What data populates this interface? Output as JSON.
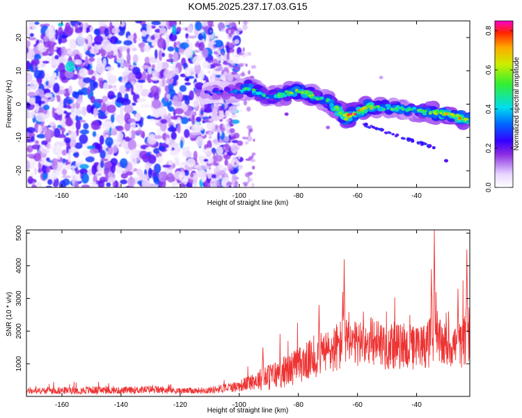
{
  "figure_title": "KOM5.2025.237.17.03.G15",
  "chart_data": [
    {
      "type": "heatmap",
      "title": "KOM5.2025.237.17.03.G15",
      "xlabel": "Height of straight line (km)",
      "ylabel": "Frequency (Hz)",
      "xlim": [
        -172,
        -22
      ],
      "ylim": [
        -25,
        25
      ],
      "xticks": [
        -160,
        -140,
        -120,
        -100,
        -80,
        -60,
        -40
      ],
      "yticks": [
        -20,
        -10,
        0,
        10,
        20
      ],
      "xtick_labels": [
        "-160",
        "-140",
        "-120",
        "-100",
        "-80",
        "-60",
        "-40"
      ],
      "ytick_labels": [
        "-20",
        "-10",
        "0",
        "10",
        "20"
      ],
      "colorbar": {
        "label": "Normalized spectral amplitude",
        "range": [
          0.0,
          0.85
        ],
        "ticks": [
          0.0,
          0.2,
          0.4,
          0.6,
          0.8
        ],
        "tick_labels": [
          "0.0",
          "0.2",
          "0.4",
          "0.6",
          "0.8"
        ]
      },
      "ridge": {
        "description_points": [
          {
            "x": -112,
            "freq": 3,
            "amp": 0.25
          },
          {
            "x": -100,
            "freq": 4,
            "amp": 0.4
          },
          {
            "x": -97,
            "freq": 5,
            "amp": 0.55
          },
          {
            "x": -90,
            "freq": 2,
            "amp": 0.45
          },
          {
            "x": -80,
            "freq": 4,
            "amp": 0.65
          },
          {
            "x": -70,
            "freq": 1,
            "amp": 0.5
          },
          {
            "x": -64,
            "freq": -4,
            "amp": 0.8
          },
          {
            "x": -57,
            "freq": -1,
            "amp": 0.7
          },
          {
            "x": -50,
            "freq": -1,
            "amp": 0.55
          },
          {
            "x": -40,
            "freq": -2,
            "amp": 0.5
          },
          {
            "x": -30,
            "freq": -3,
            "amp": 0.7
          },
          {
            "x": -22,
            "freq": -5,
            "amp": 0.75
          }
        ],
        "secondary_branch": [
          {
            "x": -58,
            "freq": -6
          },
          {
            "x": -45,
            "freq": -10
          },
          {
            "x": -34,
            "freq": -13
          }
        ]
      }
    },
    {
      "type": "line",
      "xlabel": "Height of straight line (km)",
      "ylabel": "SNR (10 * v/v)",
      "xlim": [
        -172,
        -22
      ],
      "ylim": [
        0,
        5100
      ],
      "xticks": [
        -160,
        -140,
        -120,
        -100,
        -80,
        -60,
        -40
      ],
      "yticks": [
        1000,
        2000,
        3000,
        4000,
        5000
      ],
      "xtick_labels": [
        "-160",
        "-140",
        "-120",
        "-100",
        "-80",
        "-60",
        "-40"
      ],
      "ytick_labels": [
        "1000",
        "2000",
        "3000",
        "4000",
        "5000"
      ],
      "color": "#ee3333",
      "envelope": {
        "x": [
          -172,
          -160,
          -150,
          -140,
          -130,
          -120,
          -110,
          -100,
          -95,
          -90,
          -85,
          -80,
          -75,
          -70,
          -65,
          -60,
          -55,
          -50,
          -45,
          -40,
          -35,
          -30,
          -25,
          -22
        ],
        "base": [
          150,
          170,
          180,
          170,
          200,
          160,
          180,
          300,
          450,
          550,
          700,
          900,
          1100,
          1300,
          1500,
          1500,
          1600,
          1500,
          1450,
          1400,
          1600,
          1500,
          1500,
          1800
        ],
        "amp": [
          120,
          160,
          180,
          150,
          180,
          130,
          150,
          250,
          400,
          600,
          700,
          800,
          900,
          1000,
          1200,
          1000,
          1100,
          1100,
          1000,
          1000,
          1100,
          1000,
          1000,
          1400
        ]
      },
      "spikes": [
        {
          "x": -92,
          "y": 1500
        },
        {
          "x": -73,
          "y": 2800
        },
        {
          "x": -65,
          "y": 3200
        },
        {
          "x": -64.5,
          "y": 4200
        },
        {
          "x": -58,
          "y": 2600
        },
        {
          "x": -53,
          "y": 2300
        },
        {
          "x": -35,
          "y": 3900
        },
        {
          "x": -34,
          "y": 5100
        },
        {
          "x": -26,
          "y": 3300
        },
        {
          "x": -23,
          "y": 4500
        }
      ]
    }
  ]
}
